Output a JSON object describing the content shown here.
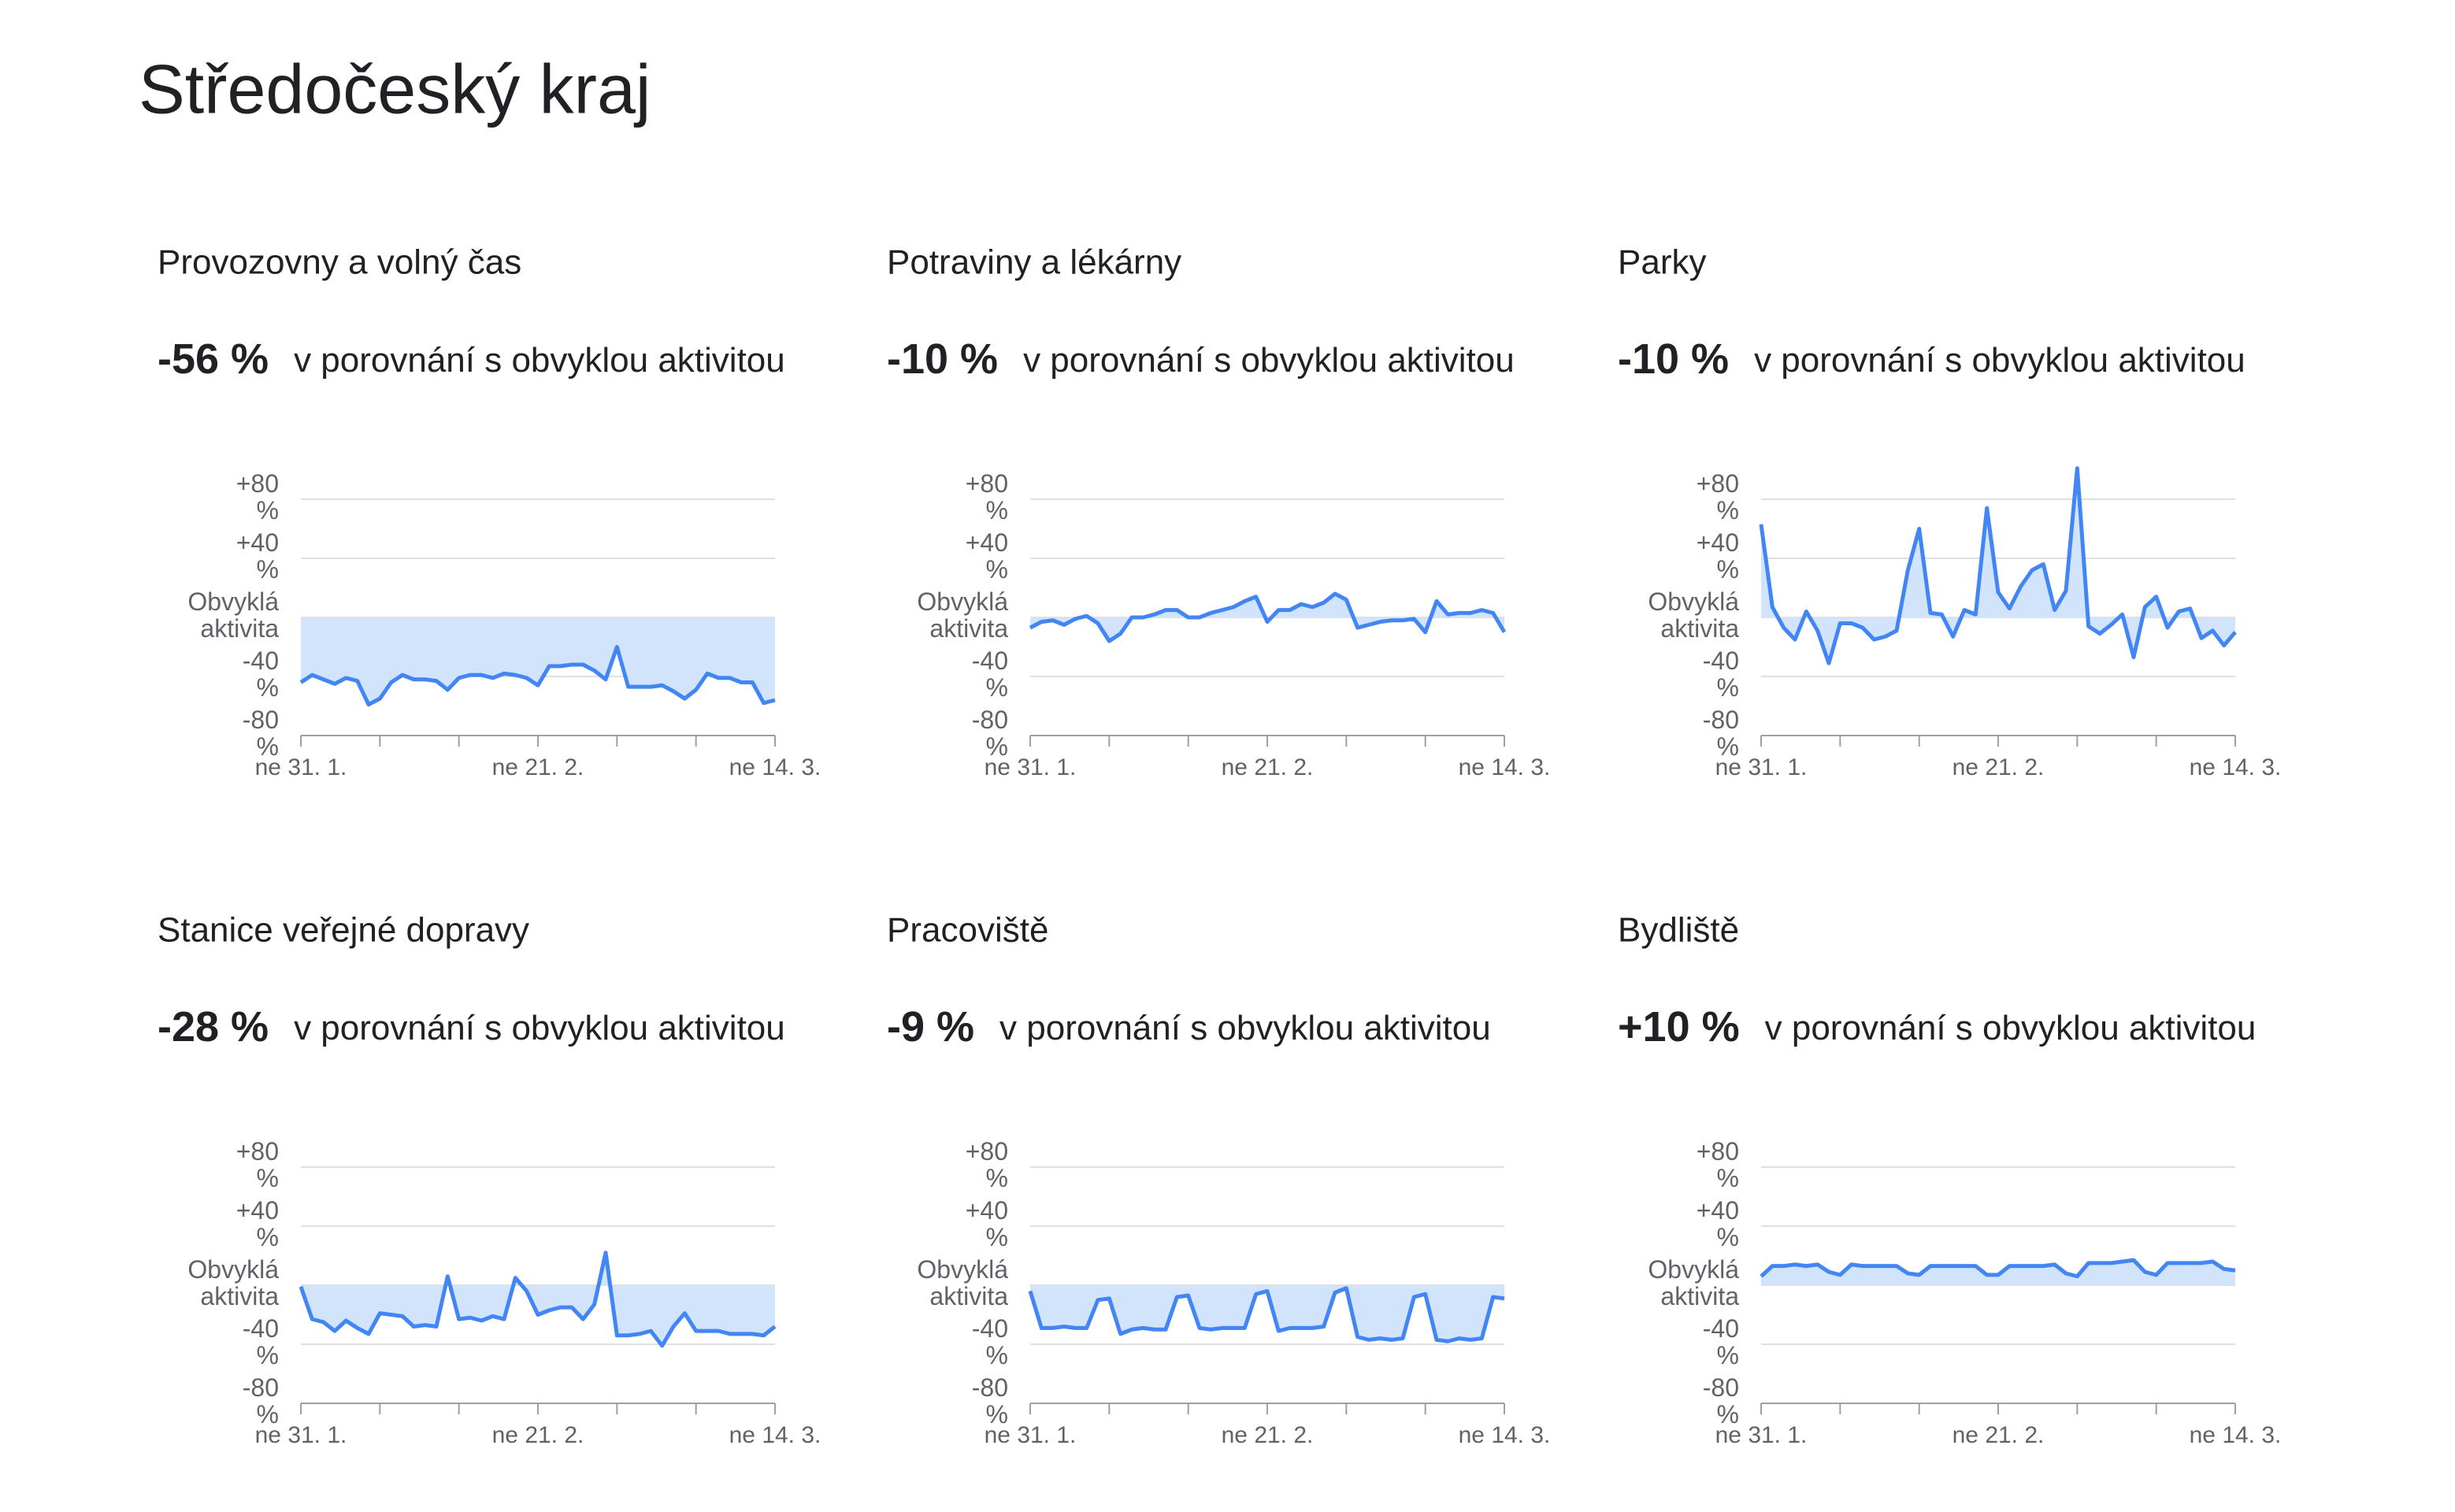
{
  "title": "Středočeský kraj",
  "chart_data": [
    {
      "type": "line",
      "title": "Provozovny a volný čas",
      "headline": "-56 %",
      "caption": "v porovnání s obvyklou aktivitou",
      "categories": [
        "ne 31. 1.",
        null,
        null,
        null,
        null,
        null,
        null,
        null,
        null,
        null,
        null,
        null,
        null,
        null,
        null,
        null,
        null,
        null,
        null,
        null,
        null,
        "ne 21. 2.",
        null,
        null,
        null,
        null,
        null,
        null,
        null,
        null,
        null,
        null,
        null,
        null,
        null,
        null,
        null,
        null,
        null,
        null,
        null,
        null,
        "ne 14. 3."
      ],
      "values": [
        -44,
        -39,
        -42,
        -45,
        -41,
        -43,
        -59,
        -55,
        -44,
        -39,
        -42,
        -42,
        -43,
        -49,
        -41,
        -39,
        -39,
        -41,
        -38,
        -39,
        -41,
        -46,
        -33,
        -33,
        -32,
        -32,
        -36,
        -42,
        -20,
        -47,
        -47,
        -47,
        -46,
        -50,
        -55,
        -49,
        -38,
        -41,
        -41,
        -44,
        -44,
        -58,
        -56
      ],
      "color": "#4285f4",
      "fill_color": "#d2e3fc",
      "ylim": [
        -80,
        80
      ],
      "yticks": [
        {
          "value": 80,
          "label": "+80 %"
        },
        {
          "value": 40,
          "label": "+40 %"
        },
        {
          "value": 0,
          "label": "Obvyklá aktivita"
        },
        {
          "value": -40,
          "label": "-40 %"
        },
        {
          "value": -80,
          "label": "-80 %"
        }
      ],
      "grid": true
    },
    {
      "type": "line",
      "title": "Potraviny a lékárny",
      "headline": "-10 %",
      "caption": "v porovnání s obvyklou aktivitou",
      "categories": [
        "ne 31. 1.",
        null,
        null,
        null,
        null,
        null,
        null,
        null,
        null,
        null,
        null,
        null,
        null,
        null,
        null,
        null,
        null,
        null,
        null,
        null,
        null,
        "ne 21. 2.",
        null,
        null,
        null,
        null,
        null,
        null,
        null,
        null,
        null,
        null,
        null,
        null,
        null,
        null,
        null,
        null,
        null,
        null,
        null,
        null,
        "ne 14. 3."
      ],
      "values": [
        -7,
        -3,
        -2,
        -5,
        -1,
        1,
        -4,
        -16,
        -11,
        0,
        0,
        2,
        5,
        5,
        0,
        0,
        3,
        5,
        7,
        11,
        14,
        -3,
        5,
        5,
        9,
        7,
        10,
        16,
        12,
        -7,
        -5,
        -3,
        -2,
        -2,
        -1,
        -10,
        11,
        2,
        3,
        3,
        5,
        3,
        -10
      ],
      "color": "#4285f4",
      "fill_color": "#d2e3fc",
      "ylim": [
        -80,
        80
      ],
      "yticks": [
        {
          "value": 80,
          "label": "+80 %"
        },
        {
          "value": 40,
          "label": "+40 %"
        },
        {
          "value": 0,
          "label": "Obvyklá aktivita"
        },
        {
          "value": -40,
          "label": "-40 %"
        },
        {
          "value": -80,
          "label": "-80 %"
        }
      ],
      "grid": true
    },
    {
      "type": "line",
      "title": "Parky",
      "headline": "-10 %",
      "caption": "v porovnání s obvyklou aktivitou",
      "categories": [
        "ne 31. 1.",
        null,
        null,
        null,
        null,
        null,
        null,
        null,
        null,
        null,
        null,
        null,
        null,
        null,
        null,
        null,
        null,
        null,
        null,
        null,
        null,
        "ne 21. 2.",
        null,
        null,
        null,
        null,
        null,
        null,
        null,
        null,
        null,
        null,
        null,
        null,
        null,
        null,
        null,
        null,
        null,
        null,
        null,
        null,
        "ne 14. 3."
      ],
      "values": [
        63,
        7,
        -7,
        -15,
        4,
        -9,
        -31,
        -4,
        -4,
        -7,
        -15,
        -13,
        -9,
        32,
        60,
        3,
        2,
        -13,
        5,
        2,
        74,
        17,
        6,
        21,
        32,
        36,
        5,
        18,
        101,
        -6,
        -11,
        -5,
        2,
        -27,
        7,
        14,
        -7,
        4,
        6,
        -14,
        -9,
        -19,
        -10
      ],
      "color": "#4285f4",
      "fill_color": "#d2e3fc",
      "ylim": [
        -80,
        80
      ],
      "yticks": [
        {
          "value": 80,
          "label": "+80 %"
        },
        {
          "value": 40,
          "label": "+40 %"
        },
        {
          "value": 0,
          "label": "Obvyklá aktivita"
        },
        {
          "value": -40,
          "label": "-40 %"
        },
        {
          "value": -80,
          "label": "-80 %"
        }
      ],
      "grid": true
    },
    {
      "type": "line",
      "title": "Stanice veřejné dopravy",
      "headline": "-28 %",
      "caption": "v porovnání s obvyklou aktivitou",
      "categories": [
        "ne 31. 1.",
        null,
        null,
        null,
        null,
        null,
        null,
        null,
        null,
        null,
        null,
        null,
        null,
        null,
        null,
        null,
        null,
        null,
        null,
        null,
        null,
        "ne 21. 2.",
        null,
        null,
        null,
        null,
        null,
        null,
        null,
        null,
        null,
        null,
        null,
        null,
        null,
        null,
        null,
        null,
        null,
        null,
        null,
        null,
        "ne 14. 3."
      ],
      "values": [
        -1,
        -23,
        -25,
        -31,
        -24,
        -29,
        -33,
        -19,
        -20,
        -21,
        -28,
        -27,
        -28,
        6,
        -23,
        -22,
        -24,
        -21,
        -23,
        5,
        -4,
        -20,
        -17,
        -15,
        -15,
        -23,
        -13,
        22,
        -34,
        -34,
        -33,
        -31,
        -41,
        -28,
        -19,
        -31,
        -31,
        -31,
        -33,
        -33,
        -33,
        -34,
        -28
      ],
      "color": "#4285f4",
      "fill_color": "#d2e3fc",
      "ylim": [
        -80,
        80
      ],
      "yticks": [
        {
          "value": 80,
          "label": "+80 %"
        },
        {
          "value": 40,
          "label": "+40 %"
        },
        {
          "value": 0,
          "label": "Obvyklá aktivita"
        },
        {
          "value": -40,
          "label": "-40 %"
        },
        {
          "value": -80,
          "label": "-80 %"
        }
      ],
      "grid": true
    },
    {
      "type": "line",
      "title": "Pracoviště",
      "headline": "-9 %",
      "caption": "v porovnání s obvyklou aktivitou",
      "categories": [
        "ne 31. 1.",
        null,
        null,
        null,
        null,
        null,
        null,
        null,
        null,
        null,
        null,
        null,
        null,
        null,
        null,
        null,
        null,
        null,
        null,
        null,
        null,
        "ne 21. 2.",
        null,
        null,
        null,
        null,
        null,
        null,
        null,
        null,
        null,
        null,
        null,
        null,
        null,
        null,
        null,
        null,
        null,
        null,
        null,
        null,
        "ne 14. 3."
      ],
      "values": [
        -4,
        -29,
        -29,
        -28,
        -29,
        -29,
        -10,
        -9,
        -33,
        -30,
        -29,
        -30,
        -30,
        -8,
        -7,
        -29,
        -30,
        -29,
        -29,
        -29,
        -6,
        -4,
        -31,
        -29,
        -29,
        -29,
        -28,
        -5,
        -2,
        -35,
        -37,
        -36,
        -37,
        -36,
        -8,
        -6,
        -37,
        -38,
        -36,
        -37,
        -36,
        -8,
        -9
      ],
      "color": "#4285f4",
      "fill_color": "#d2e3fc",
      "ylim": [
        -80,
        80
      ],
      "yticks": [
        {
          "value": 80,
          "label": "+80 %"
        },
        {
          "value": 40,
          "label": "+40 %"
        },
        {
          "value": 0,
          "label": "Obvyklá aktivita"
        },
        {
          "value": -40,
          "label": "-40 %"
        },
        {
          "value": -80,
          "label": "-80 %"
        }
      ],
      "grid": true
    },
    {
      "type": "line",
      "title": "Bydliště",
      "headline": "+10 %",
      "caption": "v porovnání s obvyklou aktivitou",
      "categories": [
        "ne 31. 1.",
        null,
        null,
        null,
        null,
        null,
        null,
        null,
        null,
        null,
        null,
        null,
        null,
        null,
        null,
        null,
        null,
        null,
        null,
        null,
        null,
        "ne 21. 2.",
        null,
        null,
        null,
        null,
        null,
        null,
        null,
        null,
        null,
        null,
        null,
        null,
        null,
        null,
        null,
        null,
        null,
        null,
        null,
        null,
        "ne 14. 3."
      ],
      "values": [
        6,
        13,
        13,
        14,
        13,
        14,
        9,
        7,
        14,
        13,
        13,
        13,
        13,
        8,
        7,
        13,
        13,
        13,
        13,
        13,
        7,
        7,
        13,
        13,
        13,
        13,
        14,
        8,
        6,
        15,
        15,
        15,
        16,
        17,
        9,
        7,
        15,
        15,
        15,
        15,
        16,
        11,
        10
      ],
      "color": "#4285f4",
      "fill_color": "#d2e3fc",
      "ylim": [
        -80,
        80
      ],
      "yticks": [
        {
          "value": 80,
          "label": "+80 %"
        },
        {
          "value": 40,
          "label": "+40 %"
        },
        {
          "value": 0,
          "label": "Obvyklá aktivita"
        },
        {
          "value": -40,
          "label": "-40 %"
        },
        {
          "value": -80,
          "label": "-80 %"
        }
      ],
      "grid": true
    }
  ]
}
